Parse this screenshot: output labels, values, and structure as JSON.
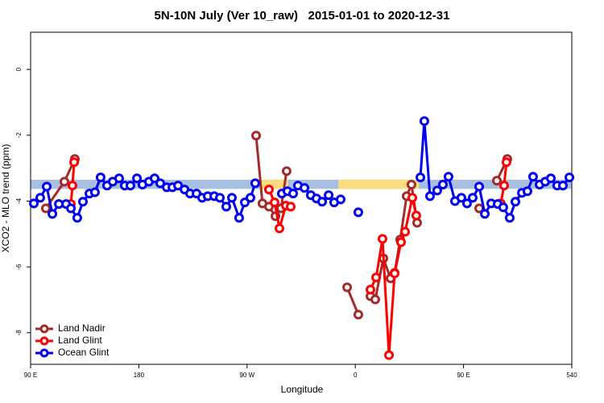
{
  "chart_data": {
    "type": "line",
    "title": "5N-10N July (Ver 10_raw)   2015-01-01 to 2020-12-31",
    "xlabel": "Longitude",
    "ylabel": "XCO2 - MLO trend (ppm)",
    "xlim": [
      90,
      540
    ],
    "ylim": [
      -8.96,
      1.13
    ],
    "xticks": [
      {
        "value": 90,
        "label": "90 E"
      },
      180,
      {
        "value": 270,
        "label": "90 W"
      },
      {
        "value": 360,
        "label": "0"
      },
      {
        "value": 450,
        "label": "90 E"
      },
      540
    ],
    "yticks": [
      0,
      -2,
      -4,
      -6,
      -8
    ],
    "legend": "lower left",
    "band": {
      "range": [
        -3.63,
        -3.35
      ],
      "color": "#a7bfe0",
      "land_color": "#fcdc7c",
      "land": [
        [
          282,
          304
        ],
        [
          346,
          413
        ]
      ]
    },
    "series": [
      {
        "name": "Land Nadir",
        "color": "#a52a2a",
        "x": [
          102.7,
          118.1,
          126.8,
          null,
          277.5,
          282.8,
          288.2,
          293.6,
          298.2,
          302.9,
          null,
          353.2,
          362.5,
          null,
          372.6,
          376.6,
          383.3,
          389.3,
          392.7,
          397.3,
          402.7,
          406.7,
          411.4,
          null,
          463,
          null,
          477.7,
          486.4
        ],
        "values": [
          -4.22,
          -3.41,
          -2.72,
          null,
          -2.01,
          -4.07,
          -4.17,
          -4.46,
          -4.22,
          -3.09,
          null,
          -6.62,
          -7.45,
          null,
          -6.89,
          -6.99,
          -5.74,
          -6.35,
          -6.18,
          -5.17,
          -3.85,
          -3.5,
          -4.66,
          null,
          -4.22,
          null,
          -3.38,
          -2.72
        ]
      },
      {
        "name": "Land Glint",
        "color": "#ff0000",
        "x": [
          123.5,
          124.8,
          126.2,
          null,
          288.2,
          292.9,
          296.9,
          302.3,
          306.3,
          null,
          372.6,
          377.3,
          382.6,
          388,
          392.7,
          398,
          401.4,
          407.4,
          410.7,
          null,
          481,
          483.7,
          485.7
        ],
        "values": [
          -4.09,
          -3.53,
          -2.82,
          null,
          -3.65,
          -4.04,
          -4.83,
          -4.14,
          -4.17,
          null,
          -6.69,
          -6.32,
          -5.15,
          -8.68,
          -6.2,
          -5.25,
          -4.93,
          -3.9,
          -4.44,
          null,
          -4.07,
          -3.53,
          -2.82
        ]
      },
      {
        "name": "Ocean Glint",
        "color": "#0000ee",
        "x": [
          92.7,
          98,
          103.4,
          108.1,
          113.5,
          119.5,
          123.5,
          128.8,
          133.5,
          138.9,
          143.5,
          148.2,
          153.6,
          158.3,
          163.6,
          168.3,
          173,
          178.4,
          183,
          188.4,
          193.1,
          197.8,
          203.2,
          207.9,
          212.6,
          218,
          222.6,
          228,
          232.6,
          237.3,
          242.7,
          247.4,
          252.7,
          257.4,
          263.4,
          268.1,
          272.8,
          276.8,
          null,
          298.9,
          303.6,
          308.3,
          312.3,
          317.7,
          323,
          327.7,
          332.4,
          337.8,
          342.4,
          347.8,
          null,
          362.5,
          null,
          414.1,
          417.4,
          422.1,
          428.1,
          432.8,
          437.5,
          442.9,
          448.2,
          452.9,
          457.6,
          463,
          467.7,
          473,
          478.4,
          483,
          488.4,
          493.1,
          498.5,
          503.1,
          507.8,
          513.2,
          517.9,
          522.6,
          527.9,
          532.6,
          538
        ],
        "values": [
          -4.07,
          -3.9,
          -3.56,
          -4.39,
          -4.09,
          -4.09,
          -4.22,
          -4.51,
          -4.02,
          -3.77,
          -3.73,
          -3.28,
          -3.53,
          -3.41,
          -3.31,
          -3.53,
          -3.53,
          -3.31,
          -3.5,
          -3.41,
          -3.31,
          -3.46,
          -3.58,
          -3.58,
          -3.53,
          -3.65,
          -3.77,
          -3.77,
          -3.9,
          -3.85,
          -3.85,
          -3.9,
          -4.17,
          -3.9,
          -4.51,
          -4.04,
          -3.9,
          -3.46,
          null,
          -3.77,
          -3.7,
          -3.77,
          -3.53,
          -3.6,
          -3.82,
          -3.92,
          -4.02,
          -3.82,
          -4.04,
          -3.95,
          null,
          -4.34,
          null,
          -3.28,
          -1.57,
          -3.85,
          -3.68,
          -3.5,
          -3.26,
          -4,
          -3.9,
          -4.07,
          -3.9,
          -3.56,
          -4.39,
          -4.07,
          -4.09,
          -4.19,
          -4.51,
          -4.02,
          -3.75,
          -3.7,
          -3.26,
          -3.5,
          -3.41,
          -3.31,
          -3.53,
          -3.53,
          -3.28
        ]
      }
    ]
  }
}
